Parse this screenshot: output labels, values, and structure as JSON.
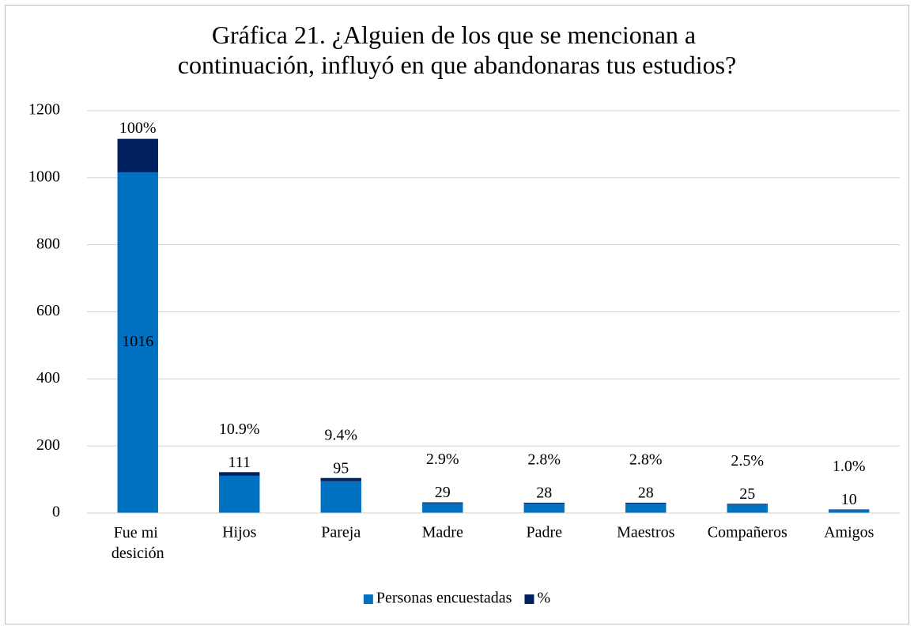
{
  "chart_data": {
    "type": "stacked_bar",
    "title": "Gráfica 21. ¿Alguien de los que se mencionan a continuación, influyó en que abandonaras tus estudios?",
    "categories": [
      "Fue mi desición",
      "Hijos",
      "Pareja",
      "Madre",
      "Padre",
      "Maestros",
      "Compañeros",
      "Amigos"
    ],
    "series": [
      {
        "name": "Personas encuestadas",
        "color": "#0070c0",
        "values": [
          1016,
          111,
          95,
          29,
          28,
          28,
          25,
          10
        ]
      },
      {
        "name": "%",
        "color": "#002060",
        "values": [
          100,
          10.9,
          9.4,
          2.9,
          2.8,
          2.8,
          2.5,
          1.0
        ],
        "value_labels": [
          "100%",
          "10.9%",
          "9.4%",
          "2.9%",
          "2.8%",
          "2.8%",
          "2.5%",
          "1.0%"
        ]
      }
    ],
    "ylim": [
      0,
      1200
    ],
    "yticks": [
      0,
      200,
      400,
      600,
      800,
      1000,
      1200
    ],
    "grid": true,
    "legend": "bottom"
  }
}
